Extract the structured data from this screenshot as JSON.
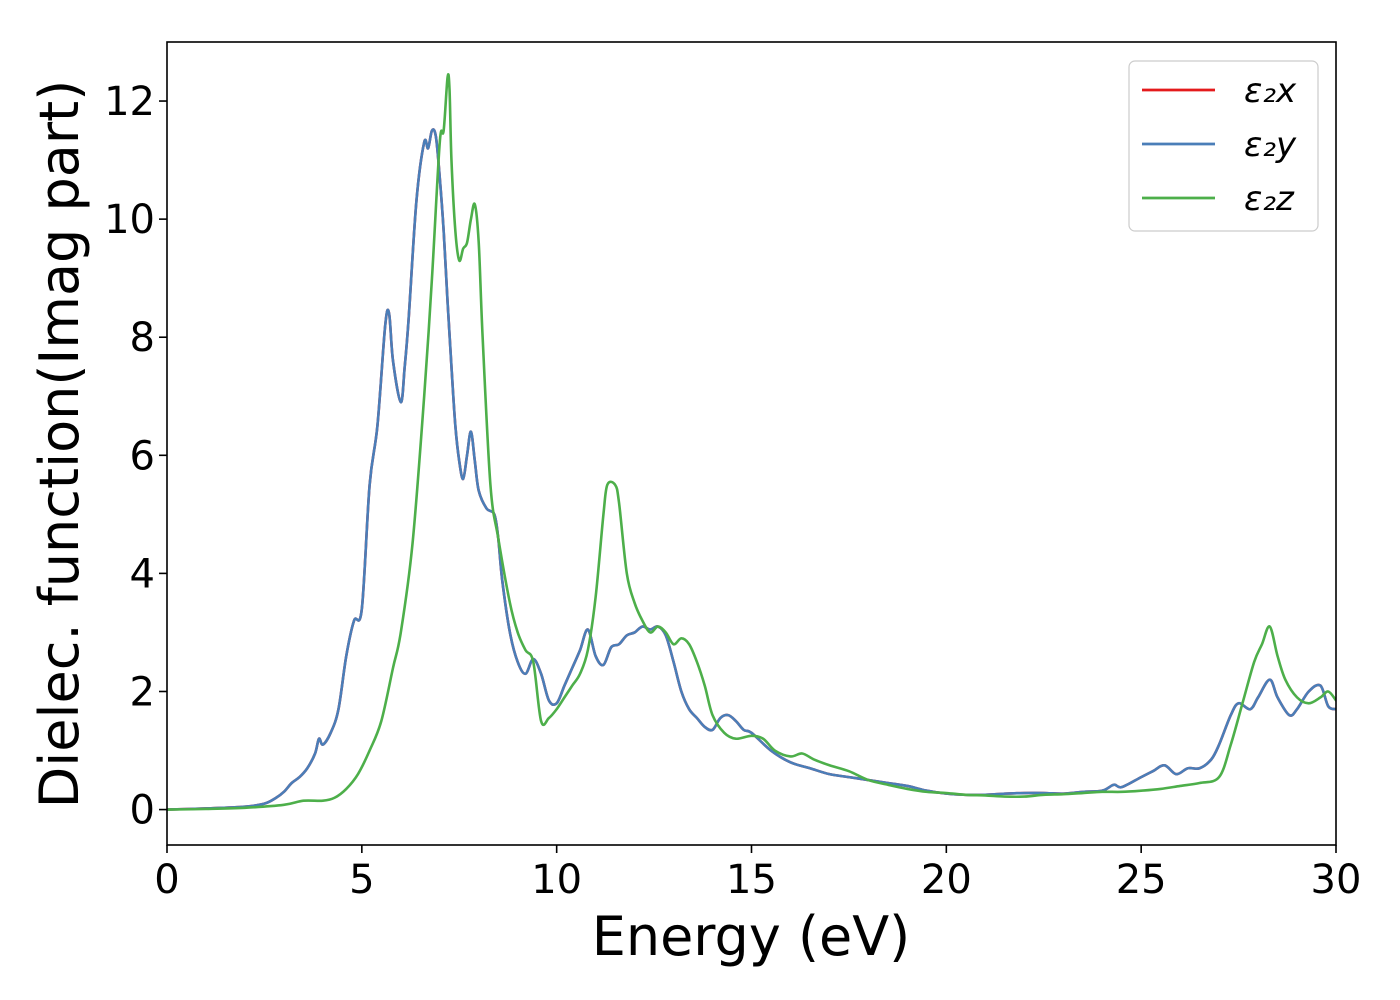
{
  "chart_data": {
    "type": "line",
    "title": "",
    "xlabel": "Energy (eV)",
    "ylabel": "Dielec. function(Imag part)",
    "xlim": [
      0,
      30
    ],
    "ylim": [
      -0.6,
      13.0
    ],
    "xticks": [
      0,
      5,
      10,
      15,
      20,
      25,
      30
    ],
    "yticks": [
      0,
      2,
      4,
      6,
      8,
      10,
      12
    ],
    "grid": false,
    "legend_position": "top-right",
    "series": [
      {
        "name": "ε₂x",
        "color": "#e41a1c",
        "x": [
          0,
          1,
          2,
          2.5,
          2.8,
          3.0,
          3.2,
          3.4,
          3.6,
          3.8,
          3.9,
          4.0,
          4.2,
          4.4,
          4.6,
          4.8,
          5.0,
          5.2,
          5.4,
          5.6,
          5.7,
          5.8,
          6.0,
          6.1,
          6.2,
          6.4,
          6.6,
          6.7,
          6.8,
          6.9,
          7.0,
          7.1,
          7.2,
          7.3,
          7.4,
          7.5,
          7.6,
          7.7,
          7.8,
          7.9,
          8.0,
          8.2,
          8.4,
          8.5,
          8.6,
          8.8,
          9.0,
          9.2,
          9.4,
          9.6,
          9.8,
          10.0,
          10.2,
          10.4,
          10.6,
          10.8,
          11.0,
          11.2,
          11.4,
          11.6,
          11.8,
          12.0,
          12.2,
          12.4,
          12.6,
          12.8,
          13.0,
          13.2,
          13.4,
          13.6,
          13.8,
          14.0,
          14.2,
          14.4,
          14.6,
          14.8,
          15.0,
          15.5,
          16.0,
          16.5,
          17.0,
          17.5,
          18.0,
          18.5,
          19.0,
          19.5,
          20.0,
          20.5,
          21.0,
          21.5,
          22.0,
          22.5,
          23.0,
          23.5,
          24.0,
          24.3,
          24.5,
          25.0,
          25.3,
          25.6,
          25.9,
          26.2,
          26.5,
          26.8,
          27.0,
          27.3,
          27.5,
          27.8,
          28.0,
          28.3,
          28.5,
          28.8,
          29.0,
          29.3,
          29.6,
          29.8,
          30.0
        ],
        "values": [
          0,
          0.02,
          0.05,
          0.1,
          0.2,
          0.3,
          0.45,
          0.55,
          0.7,
          0.95,
          1.2,
          1.1,
          1.3,
          1.7,
          2.6,
          3.2,
          3.4,
          5.5,
          6.5,
          8.2,
          8.4,
          7.6,
          6.9,
          7.5,
          8.3,
          10.3,
          11.3,
          11.2,
          11.5,
          11.4,
          10.7,
          9.8,
          8.6,
          7.5,
          6.5,
          5.9,
          5.6,
          6.0,
          6.4,
          5.9,
          5.4,
          5.1,
          5.0,
          4.6,
          3.9,
          3.0,
          2.5,
          2.3,
          2.55,
          2.3,
          1.85,
          1.8,
          2.1,
          2.4,
          2.7,
          3.05,
          2.6,
          2.45,
          2.75,
          2.8,
          2.95,
          3.0,
          3.1,
          3.05,
          3.1,
          2.95,
          2.5,
          2.0,
          1.7,
          1.55,
          1.4,
          1.35,
          1.55,
          1.6,
          1.5,
          1.35,
          1.3,
          1.0,
          0.8,
          0.7,
          0.6,
          0.55,
          0.5,
          0.45,
          0.4,
          0.32,
          0.27,
          0.25,
          0.25,
          0.27,
          0.28,
          0.28,
          0.27,
          0.3,
          0.32,
          0.42,
          0.38,
          0.55,
          0.65,
          0.75,
          0.6,
          0.7,
          0.7,
          0.85,
          1.1,
          1.6,
          1.8,
          1.7,
          1.9,
          2.2,
          1.9,
          1.6,
          1.7,
          2.0,
          2.1,
          1.75,
          1.7
        ]
      },
      {
        "name": "ε₂y",
        "color": "#4a7eb8",
        "x": [
          0,
          1,
          2,
          2.5,
          2.8,
          3.0,
          3.2,
          3.4,
          3.6,
          3.8,
          3.9,
          4.0,
          4.2,
          4.4,
          4.6,
          4.8,
          5.0,
          5.2,
          5.4,
          5.6,
          5.7,
          5.8,
          6.0,
          6.1,
          6.2,
          6.4,
          6.6,
          6.7,
          6.8,
          6.9,
          7.0,
          7.1,
          7.2,
          7.3,
          7.4,
          7.5,
          7.6,
          7.7,
          7.8,
          7.9,
          8.0,
          8.2,
          8.4,
          8.5,
          8.6,
          8.8,
          9.0,
          9.2,
          9.4,
          9.6,
          9.8,
          10.0,
          10.2,
          10.4,
          10.6,
          10.8,
          11.0,
          11.2,
          11.4,
          11.6,
          11.8,
          12.0,
          12.2,
          12.4,
          12.6,
          12.8,
          13.0,
          13.2,
          13.4,
          13.6,
          13.8,
          14.0,
          14.2,
          14.4,
          14.6,
          14.8,
          15.0,
          15.5,
          16.0,
          16.5,
          17.0,
          17.5,
          18.0,
          18.5,
          19.0,
          19.5,
          20.0,
          20.5,
          21.0,
          21.5,
          22.0,
          22.5,
          23.0,
          23.5,
          24.0,
          24.3,
          24.5,
          25.0,
          25.3,
          25.6,
          25.9,
          26.2,
          26.5,
          26.8,
          27.0,
          27.3,
          27.5,
          27.8,
          28.0,
          28.3,
          28.5,
          28.8,
          29.0,
          29.3,
          29.6,
          29.8,
          30.0
        ],
        "values": [
          0,
          0.02,
          0.05,
          0.1,
          0.2,
          0.3,
          0.45,
          0.55,
          0.7,
          0.95,
          1.2,
          1.1,
          1.3,
          1.7,
          2.6,
          3.2,
          3.4,
          5.5,
          6.5,
          8.2,
          8.4,
          7.6,
          6.9,
          7.5,
          8.3,
          10.3,
          11.3,
          11.2,
          11.5,
          11.4,
          10.7,
          9.8,
          8.6,
          7.5,
          6.5,
          5.9,
          5.6,
          6.0,
          6.4,
          5.9,
          5.4,
          5.1,
          5.0,
          4.6,
          3.9,
          3.0,
          2.5,
          2.3,
          2.55,
          2.3,
          1.85,
          1.8,
          2.1,
          2.4,
          2.7,
          3.05,
          2.6,
          2.45,
          2.75,
          2.8,
          2.95,
          3.0,
          3.1,
          3.05,
          3.1,
          2.95,
          2.5,
          2.0,
          1.7,
          1.55,
          1.4,
          1.35,
          1.55,
          1.6,
          1.5,
          1.35,
          1.3,
          1.0,
          0.8,
          0.7,
          0.6,
          0.55,
          0.5,
          0.45,
          0.4,
          0.32,
          0.27,
          0.25,
          0.25,
          0.27,
          0.28,
          0.28,
          0.27,
          0.3,
          0.32,
          0.42,
          0.38,
          0.55,
          0.65,
          0.75,
          0.6,
          0.7,
          0.7,
          0.85,
          1.1,
          1.6,
          1.8,
          1.7,
          1.9,
          2.2,
          1.9,
          1.6,
          1.7,
          2.0,
          2.1,
          1.75,
          1.7
        ]
      },
      {
        "name": "ε₂z",
        "color": "#4daf4a",
        "x": [
          0,
          1,
          2,
          3,
          3.5,
          4.0,
          4.3,
          4.6,
          4.9,
          5.2,
          5.5,
          5.8,
          6.0,
          6.3,
          6.6,
          6.8,
          7.0,
          7.1,
          7.2,
          7.25,
          7.3,
          7.4,
          7.5,
          7.6,
          7.7,
          7.8,
          7.9,
          8.0,
          8.1,
          8.3,
          8.5,
          8.8,
          9.0,
          9.2,
          9.4,
          9.6,
          9.8,
          10.0,
          10.2,
          10.4,
          10.6,
          10.8,
          11.0,
          11.2,
          11.3,
          11.5,
          11.6,
          11.8,
          12.0,
          12.2,
          12.4,
          12.6,
          12.8,
          13.0,
          13.2,
          13.4,
          13.6,
          13.8,
          14.0,
          14.3,
          14.6,
          15.0,
          15.3,
          15.6,
          16.0,
          16.3,
          16.6,
          17.0,
          17.5,
          18.0,
          18.5,
          19.0,
          19.5,
          20.0,
          20.5,
          21.0,
          21.5,
          22.0,
          22.5,
          23.0,
          23.5,
          24.0,
          24.5,
          25.0,
          25.5,
          26.0,
          26.5,
          27.0,
          27.3,
          27.6,
          27.9,
          28.1,
          28.3,
          28.5,
          28.7,
          29.0,
          29.3,
          29.6,
          29.8,
          30.0
        ],
        "values": [
          0,
          0.01,
          0.03,
          0.08,
          0.15,
          0.15,
          0.2,
          0.35,
          0.6,
          1.0,
          1.5,
          2.4,
          3.0,
          4.5,
          7.0,
          9.0,
          11.3,
          11.5,
          12.4,
          12.2,
          11.0,
          9.8,
          9.3,
          9.5,
          9.6,
          10.0,
          10.25,
          9.6,
          8.0,
          5.5,
          4.6,
          3.5,
          3.0,
          2.7,
          2.5,
          1.5,
          1.55,
          1.7,
          1.9,
          2.1,
          2.3,
          2.7,
          3.6,
          5.0,
          5.5,
          5.5,
          5.2,
          4.0,
          3.5,
          3.2,
          3.0,
          3.1,
          3.0,
          2.8,
          2.9,
          2.8,
          2.5,
          2.1,
          1.6,
          1.3,
          1.2,
          1.25,
          1.2,
          1.0,
          0.9,
          0.95,
          0.85,
          0.75,
          0.65,
          0.5,
          0.42,
          0.35,
          0.3,
          0.28,
          0.25,
          0.24,
          0.22,
          0.22,
          0.25,
          0.26,
          0.28,
          0.3,
          0.3,
          0.32,
          0.35,
          0.4,
          0.45,
          0.55,
          1.1,
          1.8,
          2.5,
          2.8,
          3.1,
          2.6,
          2.2,
          1.9,
          1.8,
          1.9,
          2.0,
          1.85
        ]
      }
    ]
  }
}
